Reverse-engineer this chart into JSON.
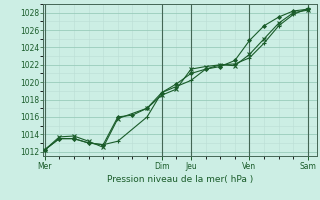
{
  "title": "Pression niveau de la mer( hPa )",
  "bg_color": "#cceee4",
  "grid_major_color": "#99ccbb",
  "grid_minor_color": "#bbddd4",
  "line_color": "#1a5c2a",
  "vline_color": "#446655",
  "ylim": [
    1011.5,
    1029.0
  ],
  "yticks": [
    1012,
    1014,
    1016,
    1018,
    1020,
    1022,
    1024,
    1026,
    1028
  ],
  "day_labels": [
    "Mer",
    "Dim",
    "Jeu",
    "Ven",
    "Sam"
  ],
  "day_x": [
    0.0,
    4.0,
    5.0,
    7.0,
    9.0
  ],
  "vline_x": [
    0.0,
    4.0,
    5.0,
    7.0,
    9.0
  ],
  "xlim": [
    -0.05,
    9.3
  ],
  "series1_x": [
    0,
    0.5,
    1.0,
    1.5,
    2.0,
    2.5,
    3.5,
    4.0,
    4.5,
    5.0,
    5.5,
    6.0,
    6.5,
    7.0,
    7.5,
    8.0,
    8.5,
    9.0
  ],
  "series1_y": [
    1012.2,
    1013.5,
    1013.5,
    1013.0,
    1012.8,
    1013.2,
    1016.0,
    1018.8,
    1019.5,
    1020.2,
    1021.5,
    1022.0,
    1022.1,
    1022.8,
    1024.5,
    1026.5,
    1027.8,
    1028.5
  ],
  "series2_x": [
    0,
    0.5,
    1.0,
    1.5,
    2.0,
    2.5,
    3.5,
    4.0,
    4.5,
    5.0,
    5.5,
    6.0,
    6.5,
    7.0,
    7.5,
    8.0,
    8.5,
    9.0
  ],
  "series2_y": [
    1012.2,
    1013.7,
    1013.8,
    1013.2,
    1012.5,
    1015.8,
    1017.0,
    1018.5,
    1019.2,
    1021.5,
    1021.8,
    1022.0,
    1021.9,
    1023.2,
    1025.0,
    1026.8,
    1028.0,
    1028.3
  ],
  "series3_x": [
    0,
    0.5,
    1.0,
    1.5,
    2.0,
    2.5,
    3.0,
    3.5,
    4.0,
    4.5,
    5.0,
    5.5,
    6.0,
    6.5,
    7.0,
    7.5,
    8.0,
    8.5,
    9.0
  ],
  "series3_y": [
    1012.2,
    1013.5,
    1013.5,
    1013.0,
    1012.8,
    1016.0,
    1016.2,
    1017.0,
    1018.8,
    1019.8,
    1021.0,
    1021.5,
    1021.8,
    1022.5,
    1024.8,
    1026.5,
    1027.5,
    1028.2,
    1028.4
  ]
}
